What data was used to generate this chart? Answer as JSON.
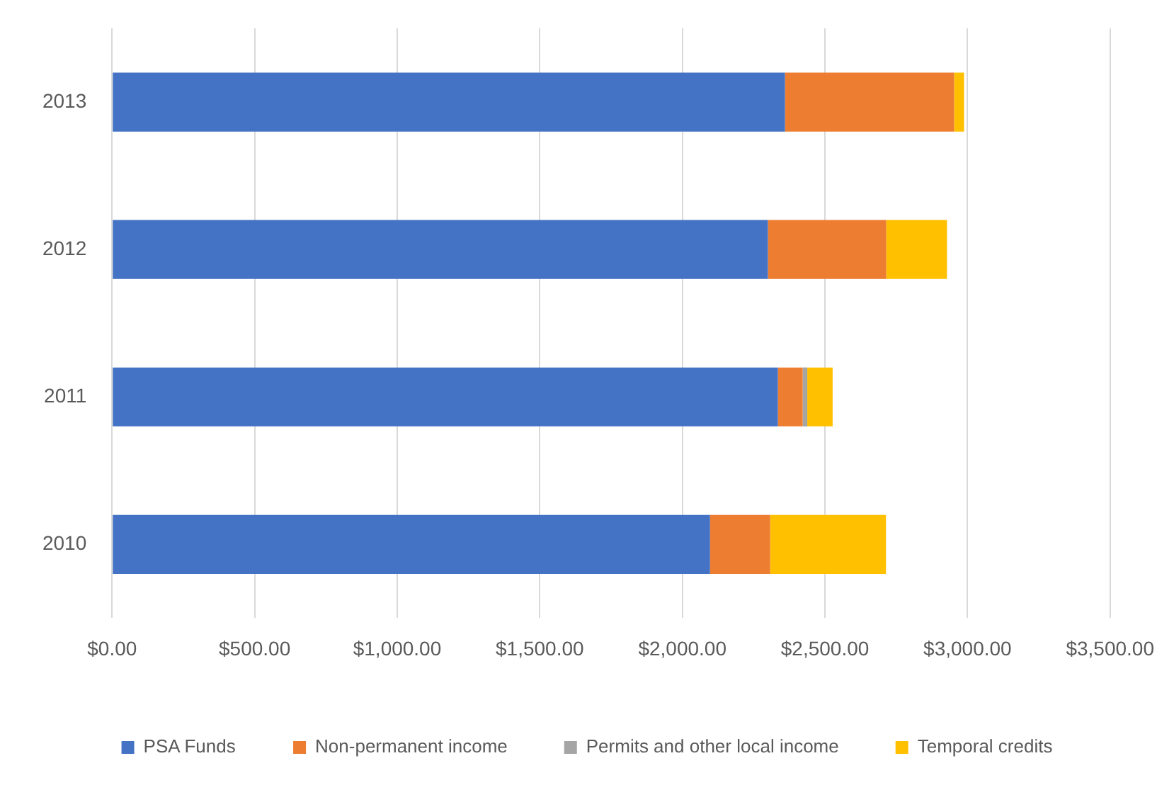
{
  "chart_data": {
    "type": "bar",
    "orientation": "horizontal",
    "stacked": true,
    "categories": [
      "2013",
      "2012",
      "2011",
      "2010"
    ],
    "series": [
      {
        "name": "PSA Funds",
        "color": "#4472c4",
        "values": [
          2360,
          2300,
          2335,
          2097
        ]
      },
      {
        "name": "Non-permanent income",
        "color": "#ed7d31",
        "values": [
          593,
          415,
          87,
          211
        ]
      },
      {
        "name": "Permits and other local income",
        "color": "#a5a5a5",
        "values": [
          null,
          null,
          16,
          null
        ]
      },
      {
        "name": "Temporal credits",
        "color": "#ffc000",
        "values": [
          35,
          213,
          89,
          406
        ]
      }
    ],
    "xlim": [
      0,
      3500
    ],
    "xticks": [
      {
        "value": 0,
        "label": "$0.00"
      },
      {
        "value": 500,
        "label": "$500.00"
      },
      {
        "value": 1000,
        "label": "$1,000.00"
      },
      {
        "value": 1500,
        "label": "$1,500.00"
      },
      {
        "value": 2000,
        "label": "$2,000.00"
      },
      {
        "value": 2500,
        "label": "$2,500.00"
      },
      {
        "value": 3000,
        "label": "$3,000.00"
      },
      {
        "value": 3500,
        "label": "$3,500.00"
      }
    ],
    "grid": "x",
    "legend": "bottom"
  }
}
